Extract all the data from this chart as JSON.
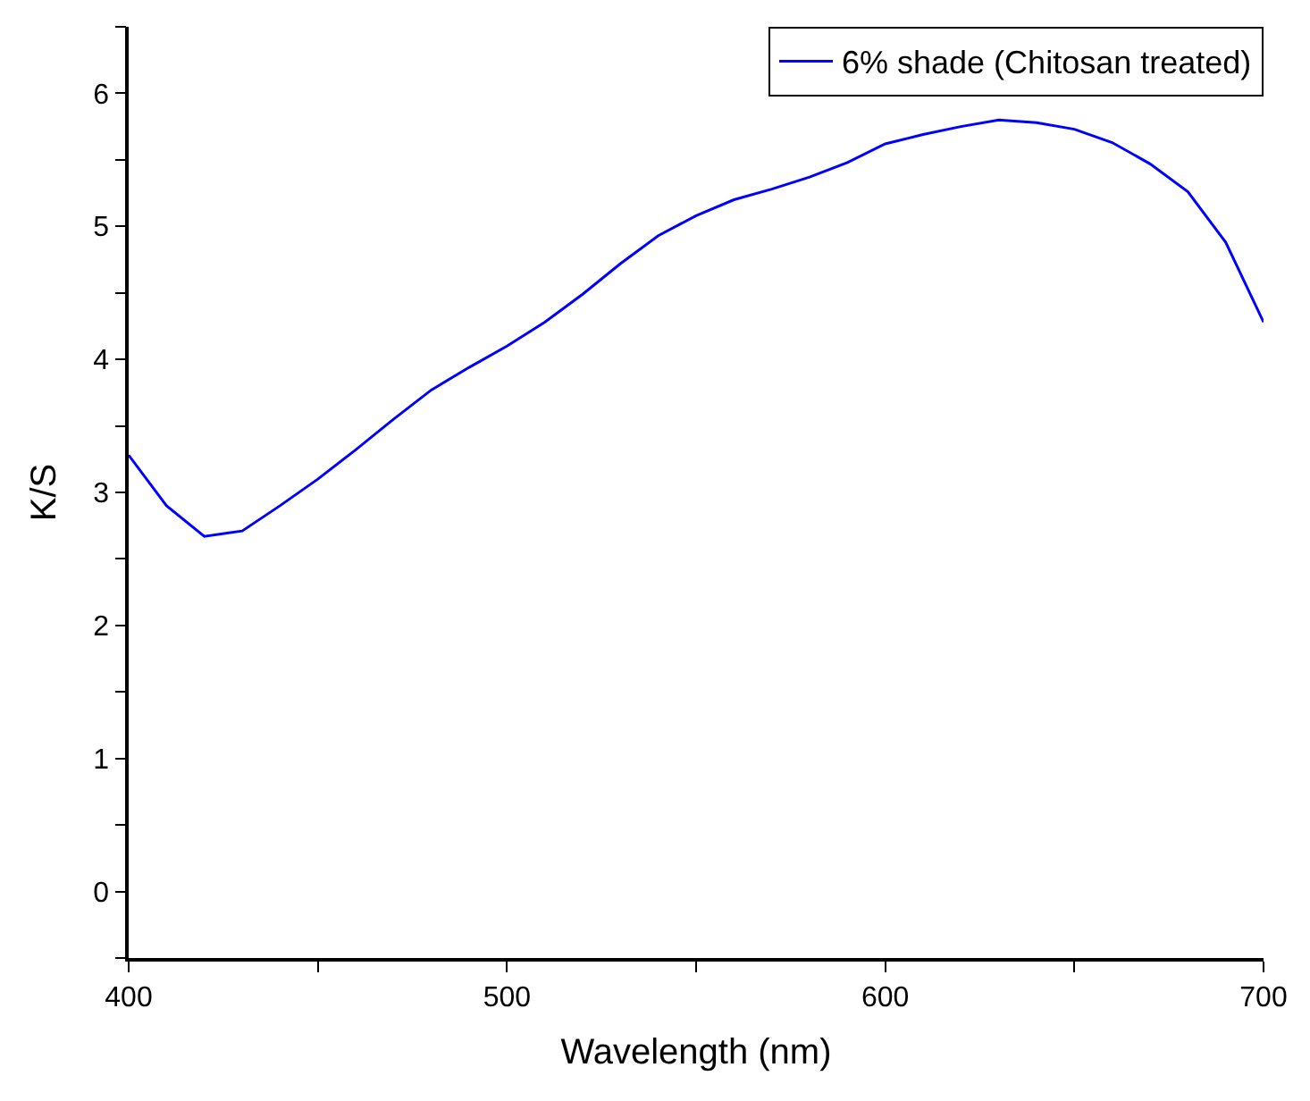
{
  "chart_data": {
    "type": "line",
    "xlabel": "Wavelength (nm)",
    "ylabel": "K/S",
    "x": [
      400,
      410,
      420,
      430,
      440,
      450,
      460,
      470,
      480,
      490,
      500,
      510,
      520,
      530,
      540,
      550,
      560,
      570,
      580,
      590,
      600,
      610,
      620,
      630,
      640,
      650,
      660,
      670,
      680,
      690,
      700
    ],
    "series": [
      {
        "name": "6% shade (Chitosan treated)",
        "color": "#0000ff",
        "values": [
          3.28,
          2.9,
          2.67,
          2.71,
          2.9,
          3.1,
          3.32,
          3.55,
          3.77,
          3.94,
          4.1,
          4.28,
          4.49,
          4.72,
          4.93,
          5.08,
          5.2,
          5.28,
          5.37,
          5.48,
          5.62,
          5.69,
          5.75,
          5.8,
          5.78,
          5.73,
          5.63,
          5.47,
          5.26,
          4.88,
          4.28
        ]
      }
    ],
    "xlim": [
      400,
      700
    ],
    "xticks": [
      400,
      {
        "value": 450,
        "label": null
      },
      500,
      {
        "value": 550,
        "label": null
      },
      600,
      {
        "value": 650,
        "label": null
      },
      700
    ],
    "ylim": [
      -0.5,
      6.5
    ],
    "yticks": [
      {
        "value": -0.5,
        "label": null
      },
      0,
      {
        "value": 0.5,
        "label": null
      },
      1,
      {
        "value": 1.5,
        "label": null
      },
      2,
      {
        "value": 2.5,
        "label": null
      },
      3,
      {
        "value": 3.5,
        "label": null
      },
      4,
      {
        "value": 4.5,
        "label": null
      },
      5,
      {
        "value": 5.5,
        "label": null
      },
      6,
      {
        "value": 6.5,
        "label": null
      }
    ],
    "legend": "top right",
    "marker": "none",
    "line_style": "solid"
  }
}
